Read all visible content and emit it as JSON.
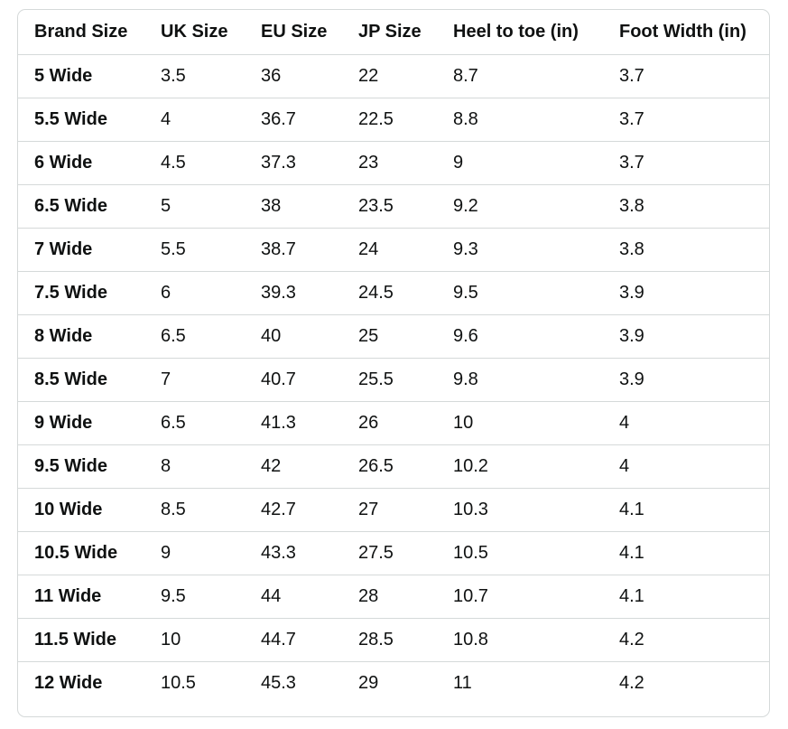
{
  "size_chart": {
    "headers": [
      "Brand Size",
      "UK Size",
      "EU Size",
      "JP Size",
      "Heel to toe (in)",
      "Foot Width (in)"
    ],
    "rows": [
      [
        "5 Wide",
        "3.5",
        "36",
        "22",
        "8.7",
        "3.7"
      ],
      [
        "5.5 Wide",
        "4",
        "36.7",
        "22.5",
        "8.8",
        "3.7"
      ],
      [
        "6 Wide",
        "4.5",
        "37.3",
        "23",
        "9",
        "3.7"
      ],
      [
        "6.5 Wide",
        "5",
        "38",
        "23.5",
        "9.2",
        "3.8"
      ],
      [
        "7 Wide",
        "5.5",
        "38.7",
        "24",
        "9.3",
        "3.8"
      ],
      [
        "7.5 Wide",
        "6",
        "39.3",
        "24.5",
        "9.5",
        "3.9"
      ],
      [
        "8 Wide",
        "6.5",
        "40",
        "25",
        "9.6",
        "3.9"
      ],
      [
        "8.5 Wide",
        "7",
        "40.7",
        "25.5",
        "9.8",
        "3.9"
      ],
      [
        "9 Wide",
        "6.5",
        "41.3",
        "26",
        "10",
        "4"
      ],
      [
        "9.5 Wide",
        "8",
        "42",
        "26.5",
        "10.2",
        "4"
      ],
      [
        "10 Wide",
        "8.5",
        "42.7",
        "27",
        "10.3",
        "4.1"
      ],
      [
        "10.5 Wide",
        "9",
        "43.3",
        "27.5",
        "10.5",
        "4.1"
      ],
      [
        "11 Wide",
        "9.5",
        "44",
        "28",
        "10.7",
        "4.1"
      ],
      [
        "11.5 Wide",
        "10",
        "44.7",
        "28.5",
        "10.8",
        "4.2"
      ],
      [
        "12 Wide",
        "10.5",
        "45.3",
        "29",
        "11",
        "4.2"
      ]
    ]
  }
}
